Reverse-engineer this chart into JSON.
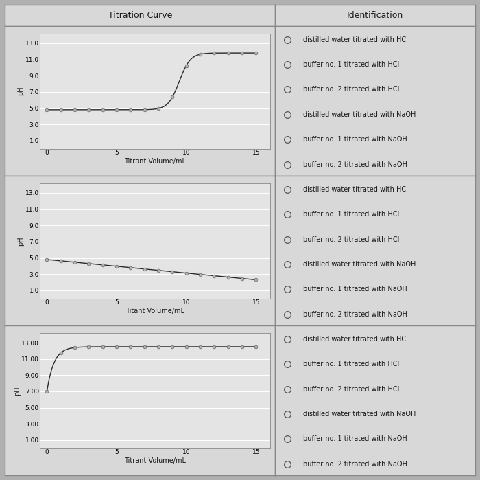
{
  "title_left": "Titration Curve",
  "title_right": "Identification",
  "outer_bg": "#b0b0b0",
  "cell_bg": "#d8d8d8",
  "plot_bg": "#e4e4e4",
  "grid_color": "#ffffff",
  "line_color": "#2a2a2a",
  "marker_color": "#b0b0b0",
  "marker_edge": "#555555",
  "text_color": "#1a1a1a",
  "border_color": "#888888",
  "legend_items": [
    "distilled water titrated with HCl",
    "buffer no. 1 titrated with HCl",
    "buffer no. 2 titrated with HCl",
    "distilled water titrated with NaOH",
    "buffer no. 1 titrated with NaOH",
    "buffer no. 2 titrated with NaOH"
  ],
  "plots": [
    {
      "ylabel": "pH",
      "xlabel": "Titrant Volume/mL",
      "yticks": [
        1.0,
        3.0,
        5.0,
        7.0,
        9.0,
        11.0,
        13.0
      ],
      "ytick_labels": [
        "1.0",
        "3.0",
        "5.0",
        "7.0",
        "9.0",
        "11.0",
        "13.0"
      ],
      "xticks": [
        0,
        5,
        10,
        15
      ],
      "ylim": [
        0.0,
        14.2
      ],
      "xlim": [
        -0.5,
        16.0
      ],
      "curve_type": "sigmoid_up"
    },
    {
      "ylabel": "pH",
      "xlabel": "Titant Volume/mL",
      "yticks": [
        1.0,
        3.0,
        5.0,
        7.0,
        9.0,
        11.0,
        13.0
      ],
      "ytick_labels": [
        "1.0",
        "3.0",
        "5.0",
        "7.0",
        "9.0",
        "11.0",
        "13.0"
      ],
      "xticks": [
        0,
        5,
        10,
        15
      ],
      "ylim": [
        0.0,
        14.2
      ],
      "xlim": [
        -0.5,
        16.0
      ],
      "curve_type": "linear_down"
    },
    {
      "ylabel": "pH",
      "xlabel": "Titrant Volume/mL",
      "yticks": [
        1.0,
        3.0,
        5.0,
        7.0,
        9.0,
        11.0,
        13.0
      ],
      "ytick_labels": [
        "1.00",
        "3.00",
        "5.00",
        "7.00",
        "9.00",
        "11.00",
        "13.00"
      ],
      "xticks": [
        0,
        5,
        10,
        15
      ],
      "ylim": [
        0.0,
        14.2
      ],
      "xlim": [
        -0.5,
        16.0
      ],
      "curve_type": "log_rise"
    }
  ],
  "figsize": [
    7.0,
    6.99
  ],
  "dpi": 100
}
